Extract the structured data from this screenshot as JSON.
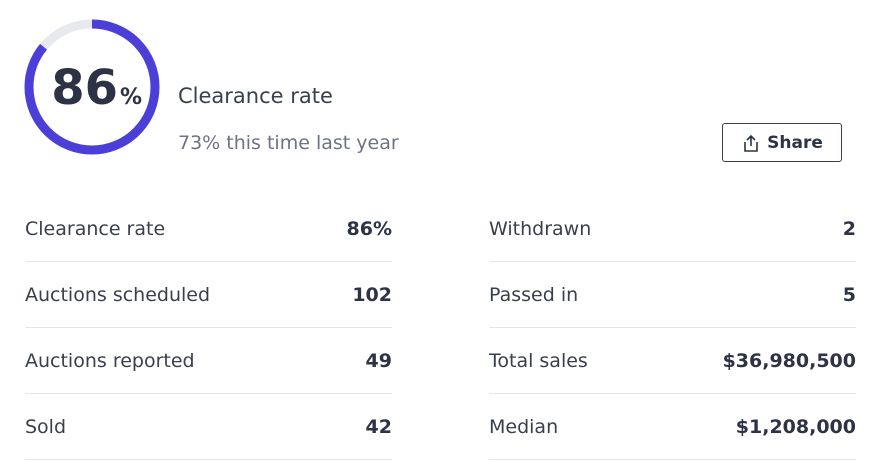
{
  "gauge": {
    "value": 86,
    "unit": "%",
    "lim": [
      0,
      100
    ]
  },
  "header": {
    "title": "Clearance rate",
    "subtitle": "73% this time last year",
    "button": "Share"
  },
  "table": {
    "columns": [
      [
        [
          "Clearance rate",
          "86%"
        ],
        [
          "Auctions scheduled",
          "102"
        ],
        [
          "Auctions reported",
          "49"
        ],
        [
          "Sold",
          "42"
        ]
      ],
      [
        [
          "Withdrawn",
          "2"
        ],
        [
          "Passed in",
          "5"
        ],
        [
          "Total sales",
          "$36,980,500"
        ],
        [
          "Median",
          "$1,208,000"
        ]
      ]
    ]
  }
}
